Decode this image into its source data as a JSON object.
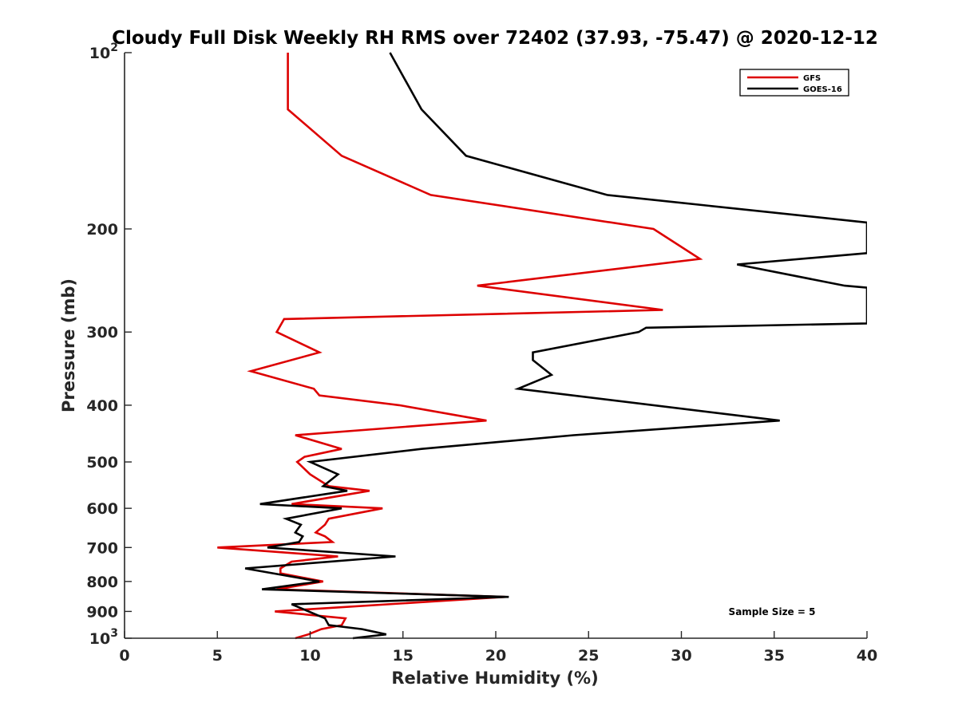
{
  "chart_data": {
    "type": "line",
    "title": "Cloudy Full Disk Weekly RH RMS over 72402 (37.93, -75.47) @ 2020-12-12",
    "xlabel": "Relative Humidity (%)",
    "ylabel": "Pressure (mb)",
    "xlim": [
      0,
      40
    ],
    "ylim": [
      100,
      1000
    ],
    "y_scale": "log",
    "y_reversed": true,
    "grid": false,
    "legend_position": "top-right",
    "x_ticks": [
      "0",
      "5",
      "10",
      "15",
      "20",
      "25",
      "30",
      "35",
      "40"
    ],
    "x_tick_values": [
      0,
      5,
      10,
      15,
      20,
      25,
      30,
      35,
      40
    ],
    "y_ticks": [
      {
        "value": 100,
        "base": "10",
        "exp": "2",
        "label": ""
      },
      {
        "value": 200,
        "base": "",
        "exp": "",
        "label": "200"
      },
      {
        "value": 300,
        "base": "",
        "exp": "",
        "label": "300"
      },
      {
        "value": 400,
        "base": "",
        "exp": "",
        "label": "400"
      },
      {
        "value": 500,
        "base": "",
        "exp": "",
        "label": "500"
      },
      {
        "value": 600,
        "base": "",
        "exp": "",
        "label": "600"
      },
      {
        "value": 700,
        "base": "",
        "exp": "",
        "label": "700"
      },
      {
        "value": 800,
        "base": "",
        "exp": "",
        "label": "800"
      },
      {
        "value": 900,
        "base": "",
        "exp": "",
        "label": "900"
      },
      {
        "value": 1000,
        "base": "10",
        "exp": "3",
        "label": ""
      }
    ],
    "series": [
      {
        "name": "GFS",
        "color": "#dd0000",
        "points": [
          [
            8.8,
            100
          ],
          [
            8.8,
            125
          ],
          [
            11.7,
            150
          ],
          [
            16.5,
            175
          ],
          [
            28.5,
            200
          ],
          [
            31.0,
            225
          ],
          [
            19.0,
            250
          ],
          [
            29.0,
            275
          ],
          [
            8.6,
            285
          ],
          [
            8.2,
            300
          ],
          [
            10.5,
            325
          ],
          [
            6.8,
            350
          ],
          [
            10.2,
            375
          ],
          [
            10.5,
            385
          ],
          [
            14.8,
            400
          ],
          [
            19.5,
            425
          ],
          [
            9.2,
            450
          ],
          [
            11.7,
            475
          ],
          [
            9.7,
            490
          ],
          [
            9.3,
            500
          ],
          [
            10.0,
            525
          ],
          [
            11.0,
            550
          ],
          [
            13.2,
            560
          ],
          [
            9.0,
            590
          ],
          [
            13.9,
            600
          ],
          [
            11.0,
            625
          ],
          [
            10.8,
            640
          ],
          [
            10.3,
            660
          ],
          [
            10.8,
            670
          ],
          [
            11.2,
            685
          ],
          [
            5.0,
            700
          ],
          [
            11.5,
            725
          ],
          [
            9.0,
            740
          ],
          [
            8.4,
            760
          ],
          [
            8.4,
            775
          ],
          [
            10.7,
            800
          ],
          [
            8.2,
            825
          ],
          [
            20.5,
            850
          ],
          [
            8.1,
            900
          ],
          [
            11.9,
            925
          ],
          [
            11.7,
            950
          ],
          [
            10.6,
            965
          ],
          [
            9.9,
            985
          ],
          [
            9.2,
            1000
          ]
        ]
      },
      {
        "name": "GOES-16",
        "color": "#000000",
        "points": [
          [
            14.3,
            100
          ],
          [
            16.0,
            125
          ],
          [
            18.4,
            150
          ],
          [
            26.0,
            175
          ],
          [
            40.0,
            195
          ],
          [
            40.0,
            220
          ],
          [
            33.0,
            230
          ],
          [
            38.8,
            250
          ],
          [
            40.0,
            252
          ],
          [
            40.0,
            290
          ],
          [
            28.1,
            295
          ],
          [
            27.7,
            300
          ],
          [
            22.0,
            325
          ],
          [
            22.0,
            335
          ],
          [
            23.0,
            355
          ],
          [
            21.2,
            375
          ],
          [
            35.3,
            425
          ],
          [
            24.2,
            450
          ],
          [
            16.0,
            475
          ],
          [
            10.0,
            500
          ],
          [
            11.5,
            525
          ],
          [
            10.7,
            550
          ],
          [
            12.0,
            560
          ],
          [
            7.3,
            590
          ],
          [
            11.7,
            600
          ],
          [
            8.7,
            625
          ],
          [
            9.5,
            640
          ],
          [
            9.2,
            660
          ],
          [
            9.6,
            670
          ],
          [
            9.4,
            685
          ],
          [
            7.7,
            700
          ],
          [
            14.6,
            725
          ],
          [
            6.5,
            760
          ],
          [
            10.5,
            800
          ],
          [
            7.4,
            825
          ],
          [
            20.7,
            850
          ],
          [
            9.0,
            875
          ],
          [
            10.8,
            925
          ],
          [
            11.0,
            950
          ],
          [
            12.8,
            965
          ],
          [
            14.1,
            985
          ],
          [
            12.3,
            1000
          ]
        ]
      }
    ],
    "annotations": [
      "Sample Size = 5"
    ]
  }
}
